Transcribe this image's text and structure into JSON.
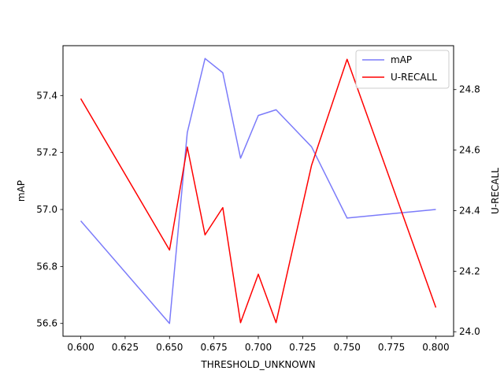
{
  "chart_data": {
    "type": "line",
    "title": "",
    "xlabel": "THRESHOLD_UNKNOWN",
    "ylabel_left": "mAP",
    "ylabel_right": "U-RECALL",
    "xlim": [
      0.59,
      0.81
    ],
    "ylim_left": [
      56.555,
      57.575
    ],
    "ylim_right": [
      23.985,
      24.945
    ],
    "x_ticks": [
      "0.600",
      "0.625",
      "0.650",
      "0.675",
      "0.700",
      "0.725",
      "0.750",
      "0.775",
      "0.800"
    ],
    "y_ticks_left": [
      "56.6",
      "56.8",
      "57.0",
      "57.2",
      "57.4"
    ],
    "y_ticks_right": [
      "24.0",
      "24.2",
      "24.4",
      "24.6",
      "24.8"
    ],
    "grid": false,
    "legend_position": "top-right",
    "x": [
      0.6,
      0.65,
      0.66,
      0.67,
      0.68,
      0.69,
      0.7,
      0.71,
      0.73,
      0.75,
      0.8
    ],
    "series": [
      {
        "name": "mAP",
        "axis": "left",
        "color": "#7b7bfa",
        "values": [
          56.96,
          56.6,
          57.27,
          57.53,
          57.48,
          57.18,
          57.33,
          57.35,
          57.22,
          56.97,
          57.0
        ]
      },
      {
        "name": "U-RECALL",
        "axis": "right",
        "color": "#ff0000",
        "values": [
          24.77,
          24.27,
          24.61,
          24.32,
          24.41,
          24.03,
          24.19,
          24.03,
          24.55,
          24.9,
          24.08
        ]
      }
    ]
  }
}
